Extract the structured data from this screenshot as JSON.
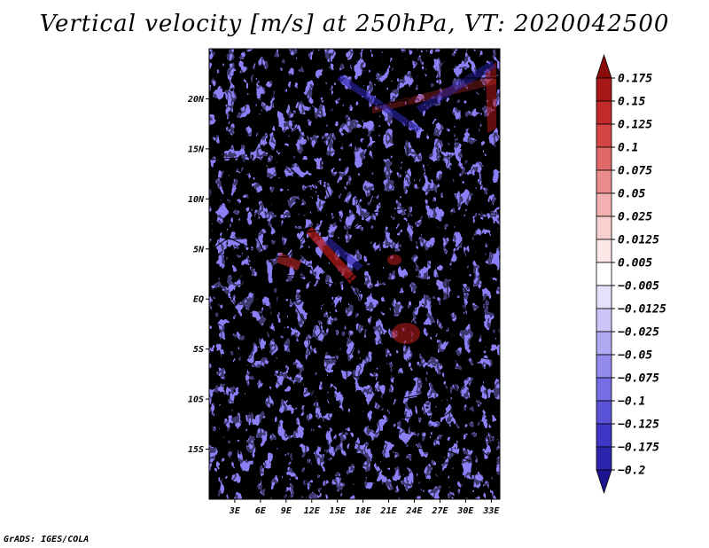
{
  "title": "Vertical velocity [m/s] at 250hPa, VT: 2020042500",
  "credit": "GrADS: IGES/COLA",
  "map": {
    "lat_labels": [
      "20N",
      "15N",
      "10N",
      "5N",
      "EQ",
      "5S",
      "10S",
      "15S"
    ],
    "lon_labels": [
      "3E",
      "6E",
      "9E",
      "12E",
      "15E",
      "18E",
      "21E",
      "24E",
      "27E",
      "30E",
      "33E"
    ],
    "lon_range_deg_east": [
      0,
      34
    ],
    "lat_range_deg": [
      -20,
      25
    ],
    "colors": {
      "sinking": "#8a7ff4",
      "rising": "#f0909a",
      "background": "#ffffff"
    }
  },
  "colorbar": {
    "levels": [
      "0.175",
      "0.15",
      "0.125",
      "0.1",
      "0.075",
      "0.05",
      "0.025",
      "0.0125",
      "0.005",
      "−0.005",
      "−0.0125",
      "−0.025",
      "−0.05",
      "−0.075",
      "−0.1",
      "−0.125",
      "−0.175",
      "−0.2"
    ],
    "colors": [
      "#8c0c0c",
      "#a81818",
      "#c22a2a",
      "#d64545",
      "#e06868",
      "#ea8c8c",
      "#f2b0b0",
      "#f8d0d0",
      "#fde8e8",
      "#ffffff",
      "#e4e2fb",
      "#cbc6f7",
      "#b0a9f2",
      "#928aec",
      "#756de3",
      "#5a52d6",
      "#3e36c4",
      "#2c24ad",
      "#1c148f"
    ]
  }
}
